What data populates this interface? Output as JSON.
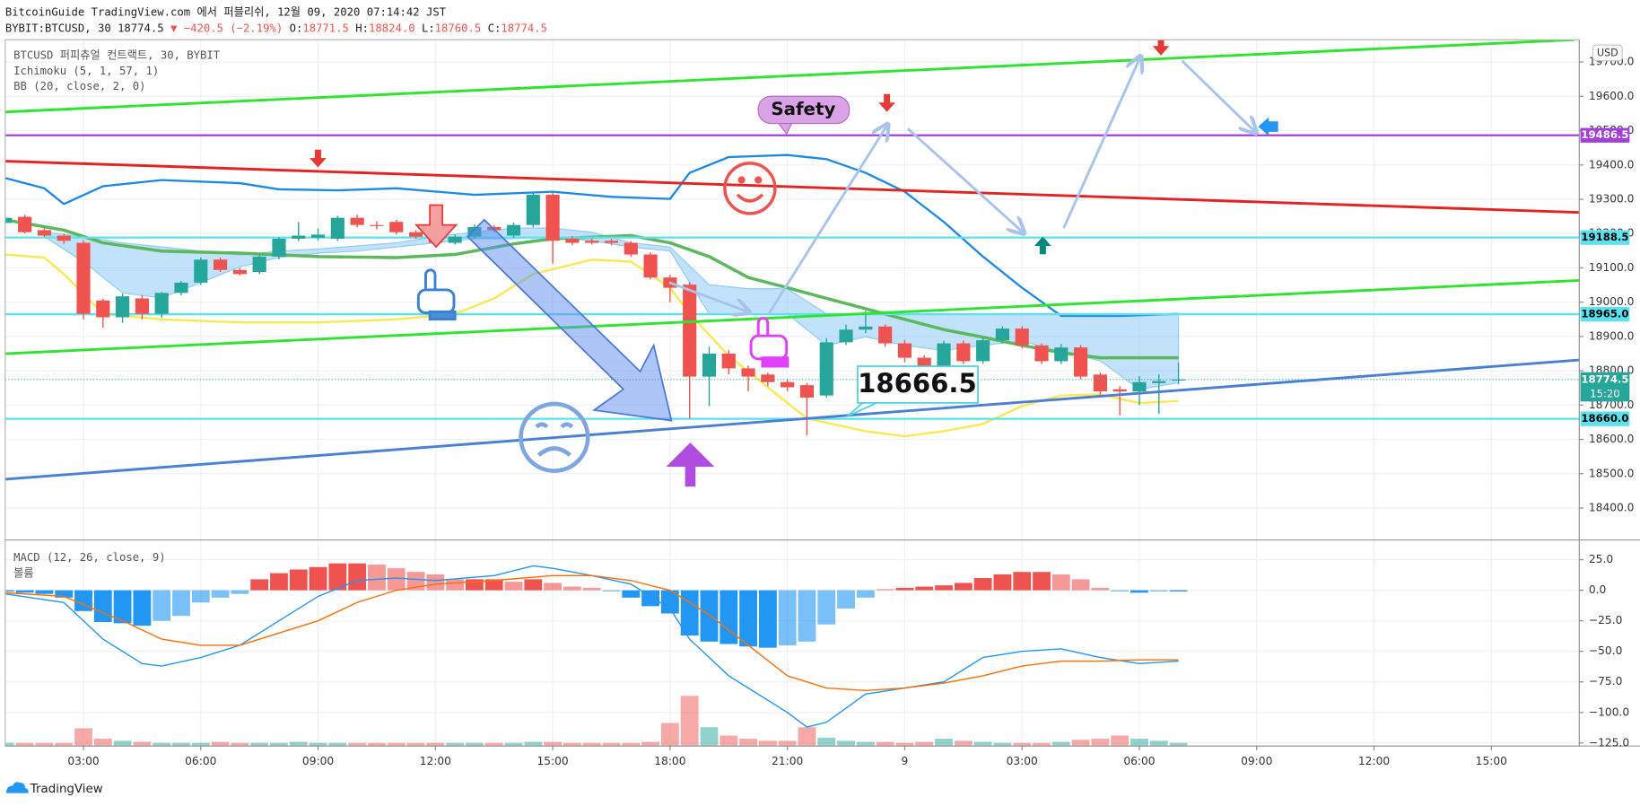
{
  "header": {
    "published": "BitcoinGuide TradingView.com 에서 퍼블리쉬, 12월 09, 2020 07:14:42 JST",
    "symbol": "BYBIT:BTCUSD, 30",
    "last": "18774.5",
    "change": "▼ −420.5 (−2.19%)",
    "ohlc": [
      {
        "label": "O:",
        "value": "18771.5"
      },
      {
        "label": "H:",
        "value": "18824.0"
      },
      {
        "label": "L:",
        "value": "18760.5"
      },
      {
        "label": "C:",
        "value": "18774.5"
      }
    ]
  },
  "footer": {
    "brand": "TradingView"
  },
  "chart_data": [
    {
      "type": "candlestick",
      "title": "BTCUSD 퍼피츄얼 컨트랙트, 30, BYBIT",
      "currency": "USD",
      "open": [
        19231,
        19249,
        19210,
        19194,
        19173,
        19005,
        18956,
        19011,
        18966,
        19027,
        19057,
        19124,
        19094,
        19088,
        19133,
        19185,
        19188,
        19185,
        19246,
        19225,
        19234,
        19204,
        19194,
        19173,
        19191,
        19219,
        19194,
        19225,
        19313,
        19185,
        19179,
        19179,
        19173,
        19139,
        19072,
        19051,
        18783,
        18850,
        18807,
        18789,
        18767,
        18758,
        18728,
        18883,
        18920,
        18929,
        18880,
        18838,
        18813,
        18880,
        18828,
        18889,
        18923,
        18874,
        18828,
        18868,
        18789,
        18746,
        18740,
        18764,
        18771.5
      ],
      "close": [
        19246,
        19204,
        19194,
        19179,
        18966,
        18956,
        19017,
        18966,
        19027,
        19057,
        19124,
        19094,
        19082,
        19133,
        19185,
        19194,
        19197,
        19246,
        19225,
        19222,
        19204,
        19191,
        19173,
        19191,
        19219,
        19210,
        19225,
        19313,
        19179,
        19173,
        19173,
        19173,
        19139,
        19072,
        19042,
        18783,
        18850,
        18807,
        18783,
        18767,
        18752,
        18722,
        18883,
        18920,
        18929,
        18880,
        18838,
        18813,
        18880,
        18828,
        18889,
        18923,
        18874,
        18828,
        18868,
        18783,
        18740,
        18740,
        18767,
        18770,
        18774.5
      ],
      "high": [
        19255,
        19255,
        19215,
        19200,
        19180,
        19010,
        19025,
        19020,
        19030,
        19062,
        19130,
        19130,
        19100,
        19140,
        19190,
        19234,
        19215,
        19252,
        19255,
        19236,
        19240,
        19210,
        19200,
        19198,
        19226,
        19225,
        19232,
        19318,
        19318,
        19192,
        19186,
        19184,
        19178,
        19145,
        19080,
        19058,
        18870,
        18860,
        18815,
        18795,
        18775,
        18765,
        18895,
        18935,
        18975,
        18935,
        18890,
        18845,
        18888,
        18888,
        18895,
        18930,
        18930,
        18880,
        18878,
        18875,
        18795,
        18755,
        18785,
        18790,
        18824
      ],
      "low": [
        19225,
        19200,
        19190,
        19170,
        18950,
        18926,
        18940,
        18950,
        18955,
        19020,
        19050,
        19088,
        19078,
        19082,
        19125,
        19178,
        19180,
        19178,
        19218,
        19212,
        19198,
        19185,
        19160,
        19168,
        19185,
        19204,
        19188,
        19218,
        19112,
        19166,
        19168,
        19166,
        19132,
        19066,
        19000,
        18661,
        18697,
        18790,
        18740,
        18755,
        18740,
        18612,
        18722,
        18875,
        18910,
        18870,
        18825,
        18800,
        18805,
        18820,
        18820,
        18880,
        18865,
        18820,
        18820,
        18775,
        18730,
        18670,
        18700,
        18675,
        18760.5
      ],
      "up_color": "#26a69a",
      "down_color": "#ef5350",
      "xlim": [
        0,
        80.5
      ],
      "xticks": [
        {
          "value": 4,
          "label": "03:00"
        },
        {
          "value": 10,
          "label": "06:00"
        },
        {
          "value": 16,
          "label": "09:00"
        },
        {
          "value": 22,
          "label": "12:00"
        },
        {
          "value": 28,
          "label": "15:00"
        },
        {
          "value": 34,
          "label": "18:00"
        },
        {
          "value": 40,
          "label": "21:00"
        },
        {
          "value": 46,
          "label": "9"
        },
        {
          "value": 52,
          "label": "03:00"
        },
        {
          "value": 58,
          "label": "06:00"
        },
        {
          "value": 64,
          "label": "09:00"
        },
        {
          "value": 70,
          "label": "12:00"
        },
        {
          "value": 76,
          "label": "15:00"
        }
      ],
      "ylim": [
        18310,
        19765
      ],
      "yticks": [
        {
          "value": 18400,
          "label": "18400.0"
        },
        {
          "value": 18500,
          "label": "18500.0"
        },
        {
          "value": 18600,
          "label": "18600.0"
        },
        {
          "value": 18700,
          "label": "18700.0"
        },
        {
          "value": 18800,
          "label": "18800.0"
        },
        {
          "value": 18900,
          "label": "18900.0"
        },
        {
          "value": 19000,
          "label": "19000.0"
        },
        {
          "value": 19100,
          "label": "19100.0"
        },
        {
          "value": 19200,
          "label": "19200.0"
        },
        {
          "value": 19300,
          "label": "19300.0"
        },
        {
          "value": 19400,
          "label": "19400.0"
        },
        {
          "value": 19500,
          "label": "19500.0"
        },
        {
          "value": 19600,
          "label": "19600.0"
        },
        {
          "value": 19700,
          "label": "19700.0"
        }
      ],
      "grid": true,
      "ichimoku": {
        "name": "Ichimoku (5, 1, 57, 1)",
        "color": "#90caf9",
        "x": [
          2,
          4,
          6,
          8,
          10,
          12,
          14,
          16,
          18,
          20,
          22,
          24,
          26,
          28,
          30,
          32,
          34,
          36,
          38,
          40,
          42,
          44,
          46,
          48,
          50,
          52,
          54,
          56,
          58,
          60
        ],
        "upper": [
          19204,
          19191,
          19173,
          19161,
          19149,
          19137,
          19149,
          19155,
          19164,
          19173,
          19191,
          19204,
          19216,
          19216,
          19204,
          19173,
          19161,
          19051,
          19039,
          19039,
          18966,
          18966,
          18966,
          18966,
          18966,
          18966,
          18966,
          18966,
          18966,
          18966
        ],
        "lower": [
          19191,
          19118,
          19027,
          19012,
          19057,
          19103,
          19130,
          19143,
          19149,
          19161,
          19173,
          19185,
          19185,
          19191,
          19179,
          19161,
          19149,
          18966,
          18966,
          18966,
          18874,
          18899,
          18874,
          18859,
          18874,
          18887,
          18856,
          18829,
          18746,
          18765
        ]
      },
      "bb": {
        "name": "BB (20, close, 2, 0)",
        "series": [
          {
            "color": "#1e88e5",
            "x": [
              0,
              2,
              3,
              5,
              8,
              12,
              14,
              17,
              20,
              24,
              28,
              31,
              34,
              35,
              37,
              40,
              42,
              44,
              46,
              48,
              50,
              52,
              54,
              57,
              60
            ],
            "values": [
              19362,
              19332,
              19286,
              19338,
              19356,
              19347,
              19329,
              19326,
              19332,
              19313,
              19322,
              19307,
              19301,
              19377,
              19423,
              19429,
              19417,
              19377,
              19322,
              19234,
              19133,
              19042,
              18960,
              18960,
              18966
            ]
          },
          {
            "color": "#5cb85c",
            "x": [
              0,
              3,
              5,
              8,
              12,
              16,
              20,
              23,
              26,
              28,
              32,
              34,
              36,
              38,
              40,
              42,
              44,
              46,
              48,
              50,
              52,
              54,
              56,
              58,
              60
            ],
            "values": [
              19240,
              19210,
              19173,
              19149,
              19143,
              19133,
              19130,
              19139,
              19170,
              19185,
              19194,
              19173,
              19133,
              19072,
              19042,
              19011,
              18981,
              18950,
              18920,
              18898,
              18874,
              18853,
              18838,
              18838,
              18838
            ]
          },
          {
            "color": "#fde74c",
            "x": [
              0,
              2,
              3,
              5,
              8,
              12,
              16,
              20,
              23,
              25,
              27,
              30,
              32,
              34,
              35,
              37,
              39,
              41,
              44,
              46,
              48,
              50,
              52,
              54,
              56,
              58,
              60
            ],
            "values": [
              19139,
              19130,
              19082,
              18966,
              18950,
              18941,
              18941,
              18950,
              18966,
              19011,
              19082,
              19124,
              19118,
              19042,
              18966,
              18844,
              18752,
              18661,
              18624,
              18609,
              18624,
              18645,
              18697,
              18728,
              18731,
              18706,
              18712
            ]
          }
        ]
      },
      "price_lines": [
        {
          "value": 19486.5,
          "color": "#a53fd6",
          "text_color": "#ffffff"
        },
        {
          "value": 19188.5,
          "color": "#5ce1f0",
          "text_color": "#000000"
        },
        {
          "value": 18965.0,
          "label": "18965.0",
          "color": "#5ce1f0",
          "text_color": "#000000"
        },
        {
          "value": 18660.0,
          "label": "18660.0",
          "color": "#5ce1f0",
          "text_color": "#000000"
        }
      ],
      "last_price": {
        "value": 18774.5,
        "countdown": "15:20",
        "color": "#26a69a"
      },
      "annotations": [
        {
          "text": "Safety"
        },
        {
          "text": "18666.5"
        }
      ]
    },
    {
      "type": "macd",
      "title": "MACD (12, 26, close, 9)",
      "volume_label": "볼륨",
      "histogram": [
        -1,
        -2,
        -3,
        -6,
        -17,
        -26,
        -27,
        -29,
        -25,
        -21,
        -10,
        -6,
        -3,
        9,
        14,
        17,
        19,
        22,
        22,
        21,
        18,
        15,
        13,
        9,
        9,
        9,
        7,
        9,
        6,
        3,
        2,
        -1,
        -6,
        -13,
        -19,
        -37,
        -42,
        -44,
        -46,
        -47,
        -45,
        -42,
        -28,
        -15,
        -6,
        1,
        2,
        3,
        4,
        6,
        10,
        13,
        15,
        15,
        13,
        9,
        2,
        -1,
        -2,
        -1,
        -1
      ],
      "positive_color": "#ef5350",
      "negative_color": "#2196f3",
      "series": [
        {
          "color": "#2196f3",
          "x": [
            0,
            3,
            5,
            7,
            8,
            10,
            12,
            14,
            16,
            18,
            20,
            22,
            25,
            27,
            28,
            30,
            32,
            34,
            35,
            37,
            40,
            41,
            42,
            44,
            46,
            48,
            50,
            52,
            54,
            56,
            58,
            60
          ],
          "values": [
            -3,
            -10,
            -40,
            -60,
            -62,
            -55,
            -45,
            -25,
            -5,
            8,
            10,
            8,
            12,
            20,
            18,
            12,
            5,
            -15,
            -40,
            -70,
            -100,
            -112,
            -108,
            -85,
            -80,
            -75,
            -55,
            -50,
            -48,
            -55,
            -60,
            -58
          ]
        },
        {
          "color": "#ff6d00",
          "x": [
            0,
            3,
            6,
            8,
            10,
            12,
            14,
            16,
            18,
            20,
            22,
            25,
            28,
            30,
            32,
            34,
            36,
            38,
            40,
            42,
            44,
            46,
            48,
            50,
            52,
            54,
            56,
            58,
            60
          ],
          "values": [
            -2,
            -5,
            -25,
            -40,
            -45,
            -45,
            -35,
            -25,
            -10,
            0,
            5,
            8,
            12,
            12,
            8,
            0,
            -20,
            -45,
            -70,
            -80,
            -82,
            -80,
            -76,
            -70,
            -62,
            -58,
            -58,
            -57,
            -57
          ]
        }
      ],
      "volume": [
        3,
        3,
        3,
        3,
        17,
        7,
        5,
        4,
        3,
        3,
        3,
        4,
        3,
        3,
        3,
        4,
        3,
        3,
        3,
        3,
        3,
        3,
        3,
        3,
        3,
        3,
        3,
        4,
        4,
        3,
        3,
        3,
        3,
        4,
        22,
        48,
        18,
        10,
        7,
        5,
        5,
        18,
        8,
        5,
        4,
        4,
        3,
        4,
        7,
        5,
        4,
        3,
        3,
        3,
        4,
        6,
        7,
        10,
        7,
        5,
        3
      ],
      "ylim": [
        -127.5,
        39.5
      ],
      "yticks": [
        {
          "value": 25,
          "label": "25.0"
        },
        {
          "value": 0,
          "label": "0.0"
        },
        {
          "value": -25,
          "label": "−25.0"
        },
        {
          "value": -50,
          "label": "−50.0"
        },
        {
          "value": -75,
          "label": "−75.0"
        },
        {
          "value": -100,
          "label": "−100.0"
        },
        {
          "value": -125,
          "label": "−125.0"
        }
      ]
    }
  ]
}
